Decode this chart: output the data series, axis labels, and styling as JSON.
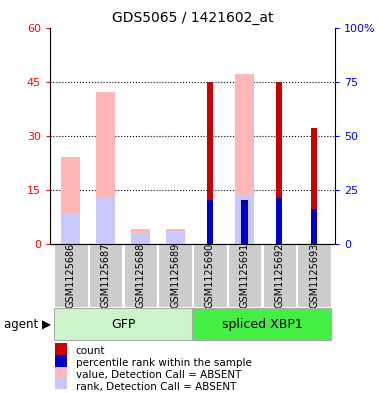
{
  "title": "GDS5065 / 1421602_at",
  "samples": [
    "GSM1125686",
    "GSM1125687",
    "GSM1125688",
    "GSM1125689",
    "GSM1125690",
    "GSM1125691",
    "GSM1125692",
    "GSM1125693"
  ],
  "groups": [
    "GFP",
    "GFP",
    "GFP",
    "GFP",
    "spliced XBP1",
    "spliced XBP1",
    "spliced XBP1",
    "spliced XBP1"
  ],
  "ylim_left": [
    0,
    60
  ],
  "ylim_right": [
    0,
    100
  ],
  "yticks_left": [
    0,
    15,
    30,
    45,
    60
  ],
  "yticks_right": [
    0,
    25,
    50,
    75,
    100
  ],
  "ytick_labels_left": [
    "0",
    "15",
    "30",
    "45",
    "60"
  ],
  "ytick_labels_right": [
    "0",
    "25",
    "50",
    "75",
    "100%"
  ],
  "absent_value": [
    24,
    42,
    4,
    4,
    0,
    47,
    0,
    0
  ],
  "absent_rank": [
    14,
    21,
    5,
    6,
    0,
    22,
    0,
    0
  ],
  "present_value": [
    0,
    0,
    0,
    0,
    45,
    0,
    45,
    32
  ],
  "present_rank": [
    0,
    0,
    0,
    0,
    20,
    20,
    21,
    16
  ],
  "color_absent_value": "#ffb6b6",
  "color_absent_rank": "#c8c8ff",
  "color_present_value": "#cc0000",
  "color_present_rank": "#0000cc",
  "gfp_color": "#ccf5cc",
  "xbp1_color": "#44ee44",
  "gray_color": "#cccccc",
  "legend_items": [
    {
      "color": "#cc0000",
      "label": "count"
    },
    {
      "color": "#0000cc",
      "label": "percentile rank within the sample"
    },
    {
      "color": "#ffb6b6",
      "label": "value, Detection Call = ABSENT"
    },
    {
      "color": "#c8c8ff",
      "label": "rank, Detection Call = ABSENT"
    }
  ]
}
